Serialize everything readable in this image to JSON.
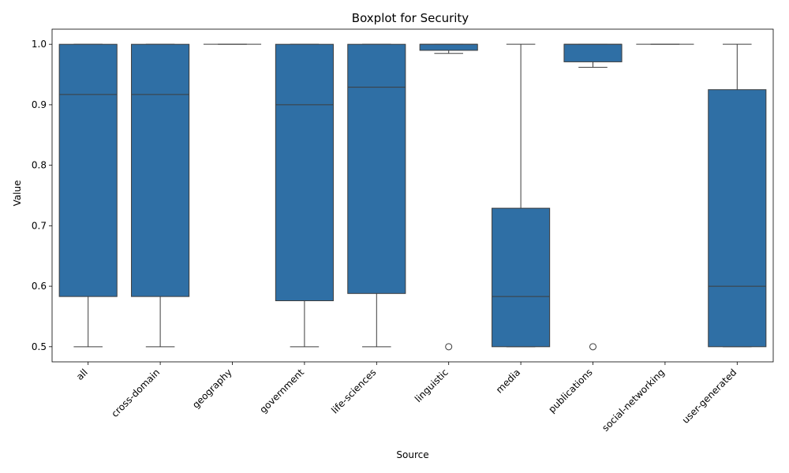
{
  "chart_data": {
    "type": "boxplot",
    "title": "Boxplot for Security",
    "xlabel": "Source",
    "ylabel": "Value",
    "ylim": [
      0.475,
      1.025
    ],
    "yticks": [
      0.5,
      0.6,
      0.7,
      0.8,
      0.9,
      1.0
    ],
    "ytick_labels": [
      "0.5",
      "0.6",
      "0.7",
      "0.8",
      "0.9",
      "1.0"
    ],
    "box_color": "#2f6fa5",
    "line_color": "#3d3d3d",
    "categories": [
      "all",
      "cross-domain",
      "geography",
      "government",
      "life-sciences",
      "linguistic",
      "media",
      "publications",
      "social-networking",
      "user-generated"
    ],
    "boxes": [
      {
        "category": "all",
        "whisker_low": 0.5,
        "q1": 0.583,
        "median": 0.917,
        "q3": 1.0,
        "whisker_high": 1.0,
        "outliers": []
      },
      {
        "category": "cross-domain",
        "whisker_low": 0.5,
        "q1": 0.583,
        "median": 0.917,
        "q3": 1.0,
        "whisker_high": 1.0,
        "outliers": []
      },
      {
        "category": "geography",
        "whisker_low": 1.0,
        "q1": 1.0,
        "median": 1.0,
        "q3": 1.0,
        "whisker_high": 1.0,
        "outliers": []
      },
      {
        "category": "government",
        "whisker_low": 0.5,
        "q1": 0.576,
        "median": 0.9,
        "q3": 1.0,
        "whisker_high": 1.0,
        "outliers": []
      },
      {
        "category": "life-sciences",
        "whisker_low": 0.5,
        "q1": 0.588,
        "median": 0.929,
        "q3": 1.0,
        "whisker_high": 1.0,
        "outliers": []
      },
      {
        "category": "linguistic",
        "whisker_low": 0.985,
        "q1": 0.99,
        "median": 1.0,
        "q3": 1.0,
        "whisker_high": 1.0,
        "outliers": [
          0.5
        ]
      },
      {
        "category": "media",
        "whisker_low": 0.5,
        "q1": 0.5,
        "median": 0.583,
        "q3": 0.729,
        "whisker_high": 1.0,
        "outliers": []
      },
      {
        "category": "publications",
        "whisker_low": 0.962,
        "q1": 0.971,
        "median": 1.0,
        "q3": 1.0,
        "whisker_high": 1.0,
        "outliers": [
          0.5
        ]
      },
      {
        "category": "social-networking",
        "whisker_low": 1.0,
        "q1": 1.0,
        "median": 1.0,
        "q3": 1.0,
        "whisker_high": 1.0,
        "outliers": []
      },
      {
        "category": "user-generated",
        "whisker_low": 0.5,
        "q1": 0.5,
        "median": 0.6,
        "q3": 0.925,
        "whisker_high": 1.0,
        "outliers": []
      }
    ]
  }
}
